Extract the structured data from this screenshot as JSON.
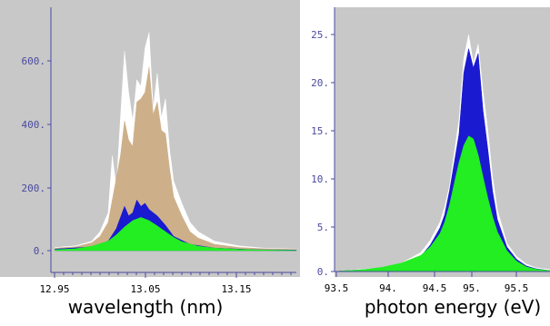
{
  "chart_data": [
    {
      "type": "area",
      "xlabel": "wavelength (nm)",
      "ylabel": "",
      "xlim": [
        12.95,
        13.25
      ],
      "ylim": [
        0,
        700
      ],
      "x_ticks": [
        "12.95",
        "13.05",
        "13.15"
      ],
      "y_ticks": [
        "0.",
        "200.",
        "400.",
        "600."
      ],
      "grid": false,
      "background": "#c8c8c8",
      "series": [
        {
          "color": "#ffffff",
          "x": [
            12.955,
            12.98,
            13.0,
            13.01,
            13.02,
            13.025,
            13.03,
            13.035,
            13.04,
            13.045,
            13.05,
            13.055,
            13.06,
            13.065,
            13.07,
            13.075,
            13.08,
            13.085,
            13.09,
            13.095,
            13.1,
            13.11,
            13.12,
            13.13,
            13.15,
            13.18,
            13.21,
            13.25
          ],
          "y": [
            10,
            15,
            30,
            60,
            120,
            300,
            200,
            420,
            630,
            500,
            410,
            540,
            520,
            640,
            690,
            450,
            560,
            420,
            480,
            320,
            220,
            150,
            90,
            60,
            30,
            15,
            8,
            5
          ]
        },
        {
          "color": "#cdb08a",
          "x": [
            12.955,
            12.98,
            13.0,
            13.01,
            13.02,
            13.025,
            13.03,
            13.035,
            13.04,
            13.045,
            13.05,
            13.055,
            13.06,
            13.065,
            13.07,
            13.075,
            13.08,
            13.085,
            13.09,
            13.095,
            13.1,
            13.11,
            13.12,
            13.13,
            13.15,
            13.18,
            13.21,
            13.25
          ],
          "y": [
            8,
            12,
            25,
            45,
            90,
            160,
            230,
            300,
            410,
            350,
            330,
            470,
            480,
            500,
            580,
            430,
            470,
            380,
            370,
            260,
            170,
            110,
            60,
            40,
            20,
            10,
            6,
            4
          ]
        },
        {
          "color": "#1a1ad0",
          "x": [
            12.955,
            13.0,
            13.02,
            13.03,
            13.04,
            13.045,
            13.05,
            13.055,
            13.06,
            13.065,
            13.07,
            13.08,
            13.09,
            13.1,
            13.12,
            13.15,
            13.2,
            13.25
          ],
          "y": [
            5,
            12,
            30,
            70,
            140,
            110,
            120,
            160,
            140,
            150,
            130,
            110,
            80,
            45,
            20,
            8,
            3,
            2
          ]
        },
        {
          "color": "#22ee22",
          "x": [
            12.955,
            12.98,
            13.0,
            13.02,
            13.03,
            13.04,
            13.05,
            13.06,
            13.07,
            13.08,
            13.09,
            13.1,
            13.11,
            13.13,
            13.15,
            13.18,
            13.21,
            13.25
          ],
          "y": [
            3,
            6,
            14,
            30,
            50,
            75,
            95,
            105,
            95,
            78,
            60,
            42,
            28,
            14,
            8,
            4,
            2,
            1
          ]
        }
      ]
    },
    {
      "type": "area",
      "xlabel": "photon energy (eV)",
      "ylabel": "",
      "xlim": [
        93.5,
        95.75
      ],
      "ylim": [
        0,
        27
      ],
      "x_ticks": [
        "93.5",
        "94.",
        "94.5",
        "95.",
        "95.5"
      ],
      "y_ticks": [
        "0.",
        "5.",
        "10.",
        "15.",
        "20.",
        "25."
      ],
      "grid": false,
      "background": "#c8c8c8",
      "series": [
        {
          "color": "#ffffff",
          "x": [
            93.55,
            94.0,
            94.2,
            94.4,
            94.5,
            94.6,
            94.65,
            94.7,
            94.75,
            94.8,
            94.85,
            94.9,
            94.95,
            95.0,
            95.05,
            95.1,
            95.15,
            95.2,
            95.3,
            95.4,
            95.5,
            95.6,
            95.75
          ],
          "y": [
            0.05,
            0.4,
            0.9,
            2.0,
            3.3,
            5.2,
            6.8,
            9.0,
            12.5,
            16.0,
            22.5,
            25.0,
            22.0,
            24.0,
            19.0,
            15.0,
            10.0,
            6.5,
            3.0,
            1.6,
            0.8,
            0.4,
            0.2
          ]
        },
        {
          "color": "#1a1ad0",
          "x": [
            93.55,
            94.0,
            94.2,
            94.4,
            94.5,
            94.6,
            94.65,
            94.7,
            94.75,
            94.8,
            94.85,
            94.9,
            94.95,
            95.0,
            95.05,
            95.1,
            95.15,
            95.2,
            95.3,
            95.4,
            95.5,
            95.6,
            95.75
          ],
          "y": [
            0.05,
            0.3,
            0.7,
            1.6,
            2.8,
            4.6,
            6.0,
            8.5,
            11.5,
            14.5,
            21.0,
            23.5,
            21.5,
            23.0,
            17.0,
            13.0,
            8.5,
            5.5,
            2.6,
            1.3,
            0.6,
            0.3,
            0.1
          ]
        },
        {
          "color": "#22ee22",
          "x": [
            93.55,
            93.8,
            94.0,
            94.2,
            94.4,
            94.5,
            94.6,
            94.65,
            94.7,
            94.75,
            94.8,
            94.85,
            94.9,
            94.95,
            95.0,
            95.05,
            95.1,
            95.15,
            95.2,
            95.3,
            95.4,
            95.5,
            95.6,
            95.75
          ],
          "y": [
            0.05,
            0.2,
            0.45,
            0.9,
            1.7,
            2.6,
            4.0,
            5.2,
            7.0,
            9.3,
            11.5,
            13.3,
            14.3,
            14.0,
            12.3,
            10.0,
            7.8,
            5.8,
            4.2,
            2.2,
            1.1,
            0.5,
            0.25,
            0.1
          ]
        }
      ]
    }
  ]
}
